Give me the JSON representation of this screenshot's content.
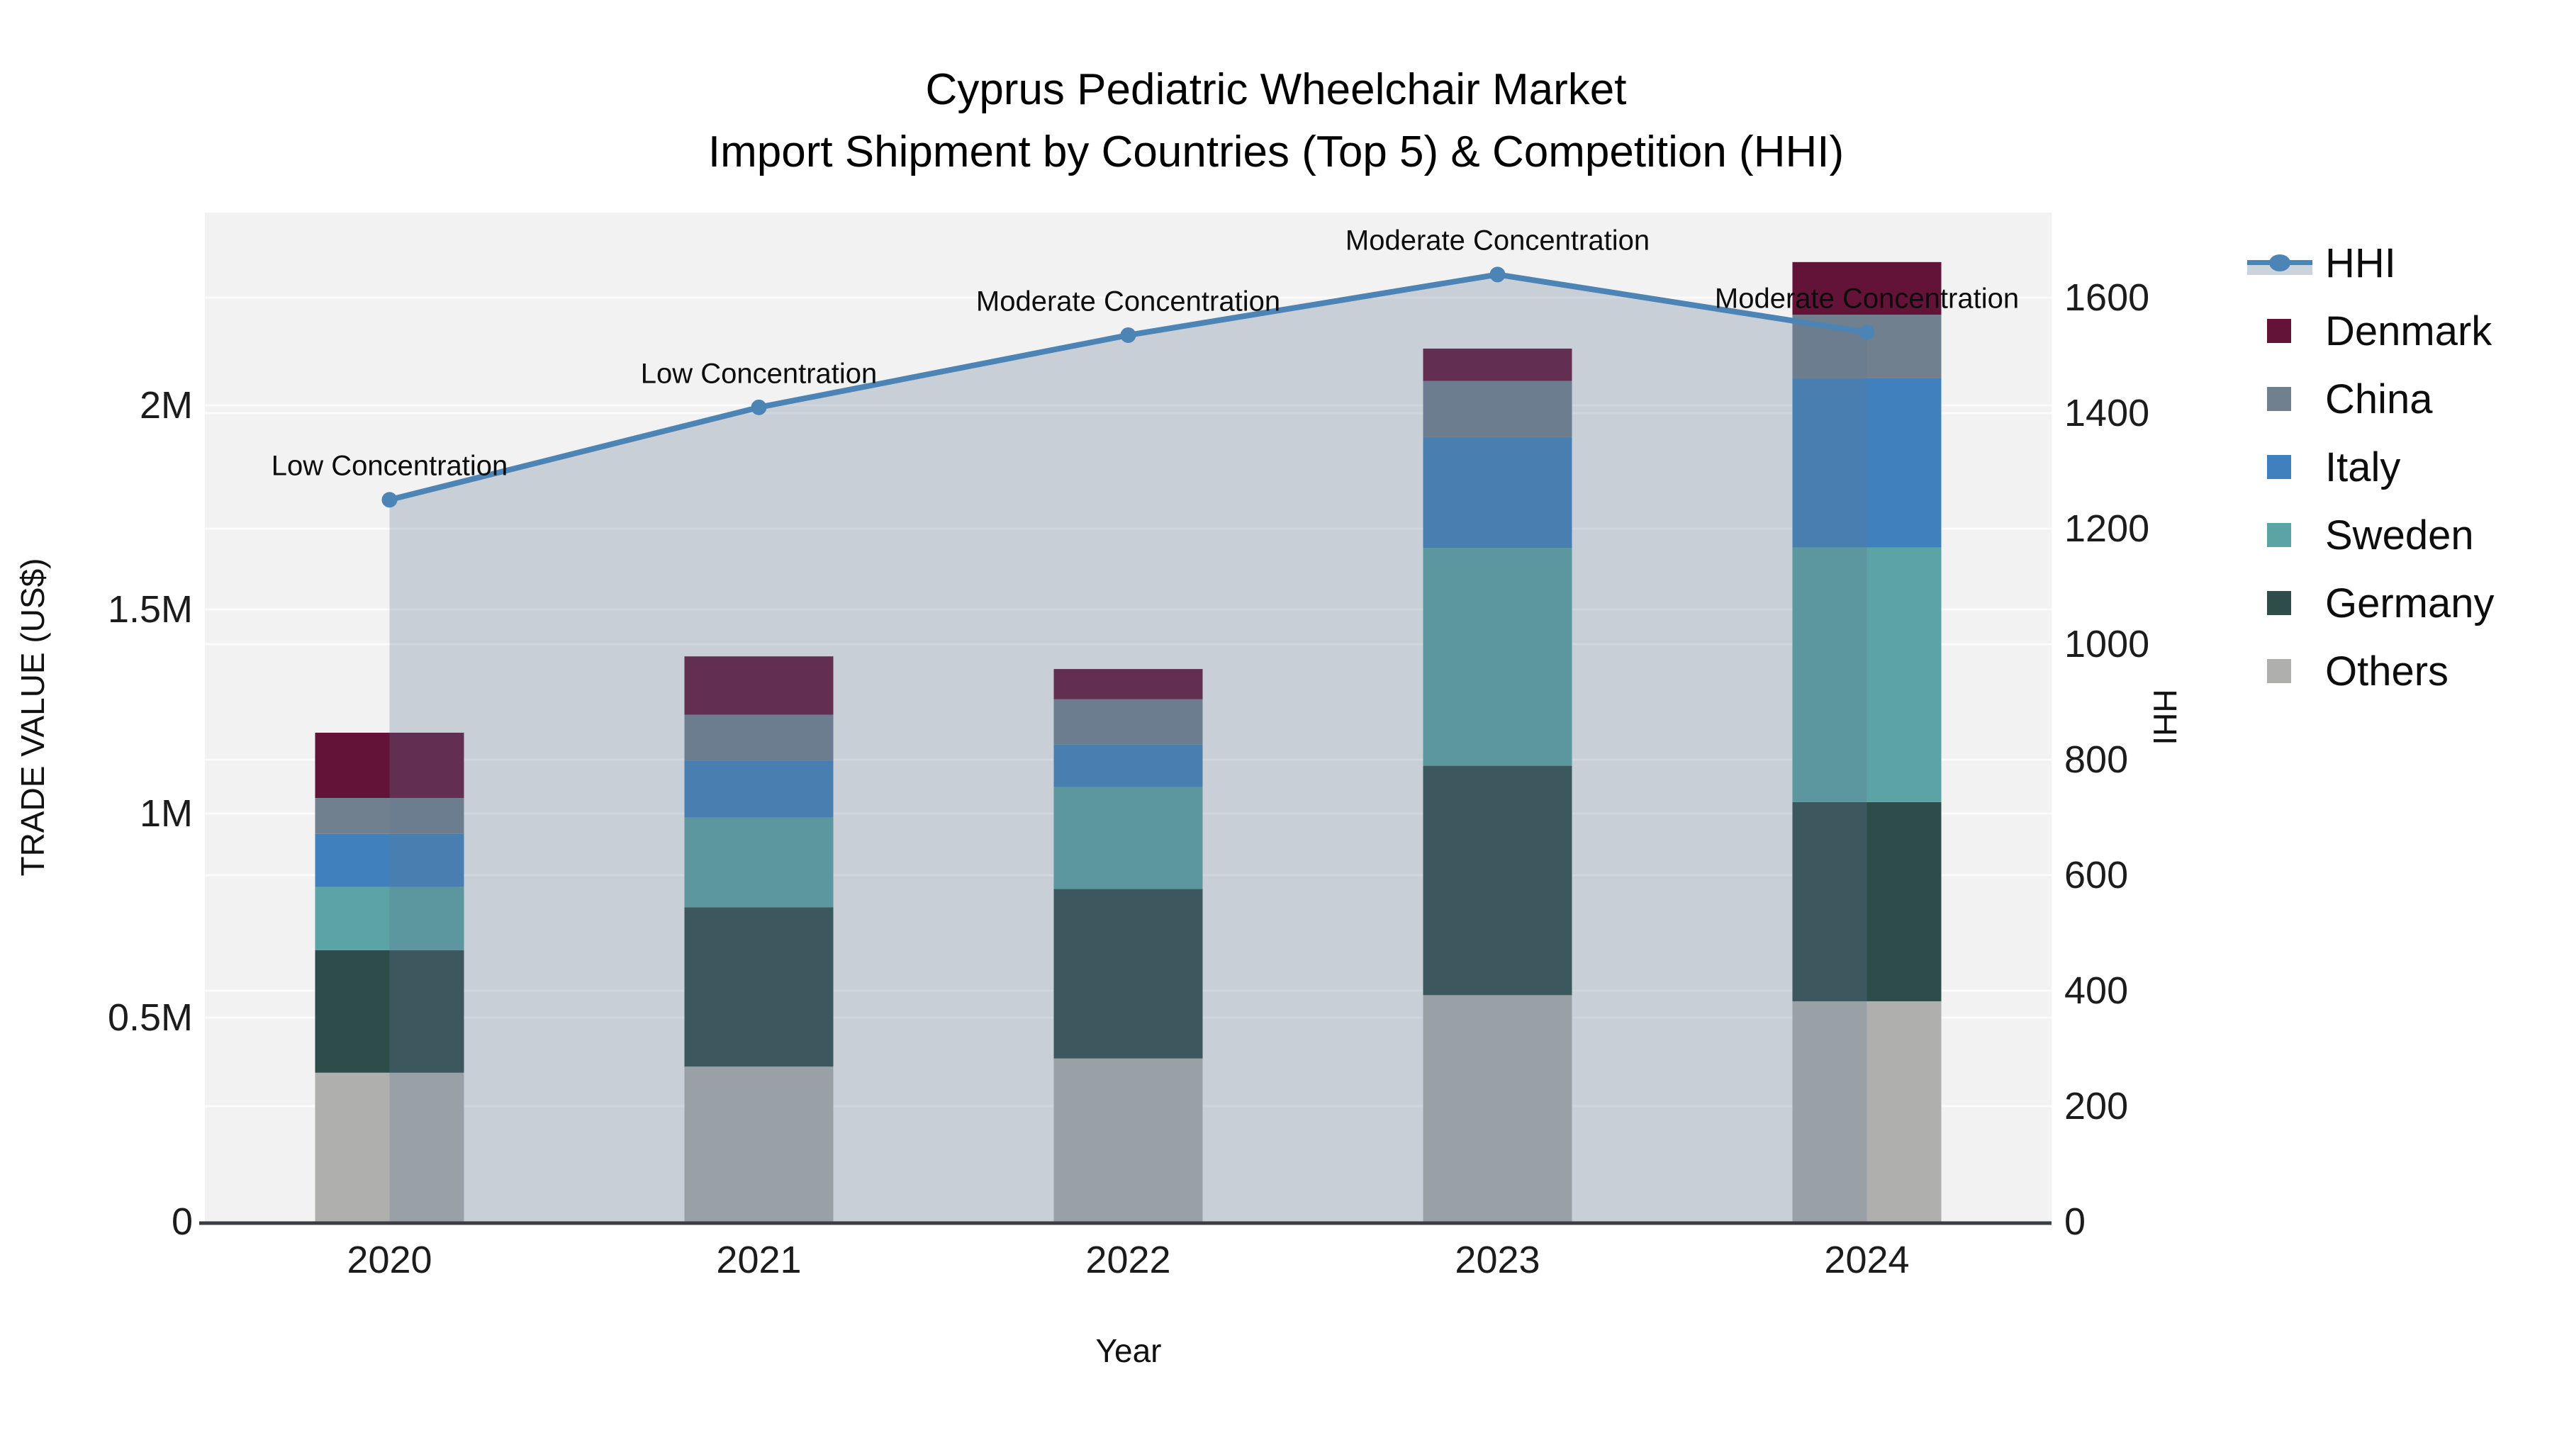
{
  "title": {
    "line1": "Cyprus Pediatric Wheelchair Market",
    "line2": "Import Shipment by Countries (Top 5) & Competition (HHI)"
  },
  "legend": {
    "items": [
      {
        "label": "HHI",
        "type": "line",
        "color": "#4C84B6"
      },
      {
        "label": "Denmark",
        "type": "swatch",
        "color": "#631338"
      },
      {
        "label": "China",
        "type": "swatch",
        "color": "#71808F"
      },
      {
        "label": "Italy",
        "type": "swatch",
        "color": "#4081BD"
      },
      {
        "label": "Sweden",
        "type": "swatch",
        "color": "#5BA3A4"
      },
      {
        "label": "Germany",
        "type": "swatch",
        "color": "#2E4D4A"
      },
      {
        "label": "Others",
        "type": "swatch",
        "color": "#AFB0AD"
      }
    ]
  },
  "chart_data": {
    "type": "bar+line",
    "title": "Cyprus Pediatric Wheelchair Market — Import Shipment by Countries (Top 5) & Competition (HHI)",
    "categories": [
      "2020",
      "2021",
      "2022",
      "2023",
      "2024"
    ],
    "xlabel": "Year",
    "ylabel": "TRADE VALUE (US$)",
    "y2label": "HHI",
    "ylim": [
      0,
      2000000
    ],
    "y2lim": [
      0,
      1600
    ],
    "grid": true,
    "legend_position": "right",
    "plot_bg": "#F2F2F2",
    "gridline_color": "#FBFBFB",
    "axisline_color": "#3C3C43",
    "stack_order_bottom_to_top": [
      "Others",
      "Germany",
      "Sweden",
      "Italy",
      "China",
      "Denmark"
    ],
    "series": [
      {
        "name": "Others",
        "color": "#AFB0AD",
        "values": [
          365000,
          380000,
          400000,
          555000,
          540000
        ]
      },
      {
        "name": "Germany",
        "color": "#2E4D4A",
        "values": [
          300000,
          390000,
          415000,
          562000,
          488000
        ]
      },
      {
        "name": "Sweden",
        "color": "#5BA3A4",
        "values": [
          155000,
          220000,
          250000,
          534000,
          624000
        ]
      },
      {
        "name": "Italy",
        "color": "#4081BD",
        "values": [
          130000,
          140000,
          104000,
          271000,
          414000
        ]
      },
      {
        "name": "China",
        "color": "#71808F",
        "values": [
          88000,
          112000,
          111000,
          138000,
          156000
        ]
      },
      {
        "name": "Denmark",
        "color": "#631338",
        "values": [
          160000,
          143000,
          74000,
          79000,
          129000
        ]
      }
    ],
    "line_series": {
      "name": "HHI",
      "axis": "right",
      "color": "#4C84B6",
      "fill_color": "rgba(98,118,148,0.28)",
      "values": [
        1250,
        1410,
        1535,
        1640,
        1540
      ]
    },
    "annotations": [
      {
        "category": "2020",
        "text": "Low Concentration"
      },
      {
        "category": "2021",
        "text": "Low Concentration"
      },
      {
        "category": "2022",
        "text": "Moderate Concentration"
      },
      {
        "category": "2023",
        "text": "Moderate Concentration"
      },
      {
        "category": "2024",
        "text": "Moderate Concentration"
      }
    ],
    "left_axis_ticks": [
      {
        "v": 0,
        "label": "0"
      },
      {
        "v": 500000,
        "label": "0.5M"
      },
      {
        "v": 1000000,
        "label": "1M"
      },
      {
        "v": 1500000,
        "label": "1.5M"
      },
      {
        "v": 2000000,
        "label": "2M"
      }
    ],
    "right_axis_ticks": [
      {
        "v": 0,
        "label": "0"
      },
      {
        "v": 200,
        "label": "200"
      },
      {
        "v": 400,
        "label": "400"
      },
      {
        "v": 600,
        "label": "600"
      },
      {
        "v": 800,
        "label": "800"
      },
      {
        "v": 1000,
        "label": "1000"
      },
      {
        "v": 1200,
        "label": "1200"
      },
      {
        "v": 1400,
        "label": "1400"
      },
      {
        "v": 1600,
        "label": "1600"
      }
    ]
  }
}
